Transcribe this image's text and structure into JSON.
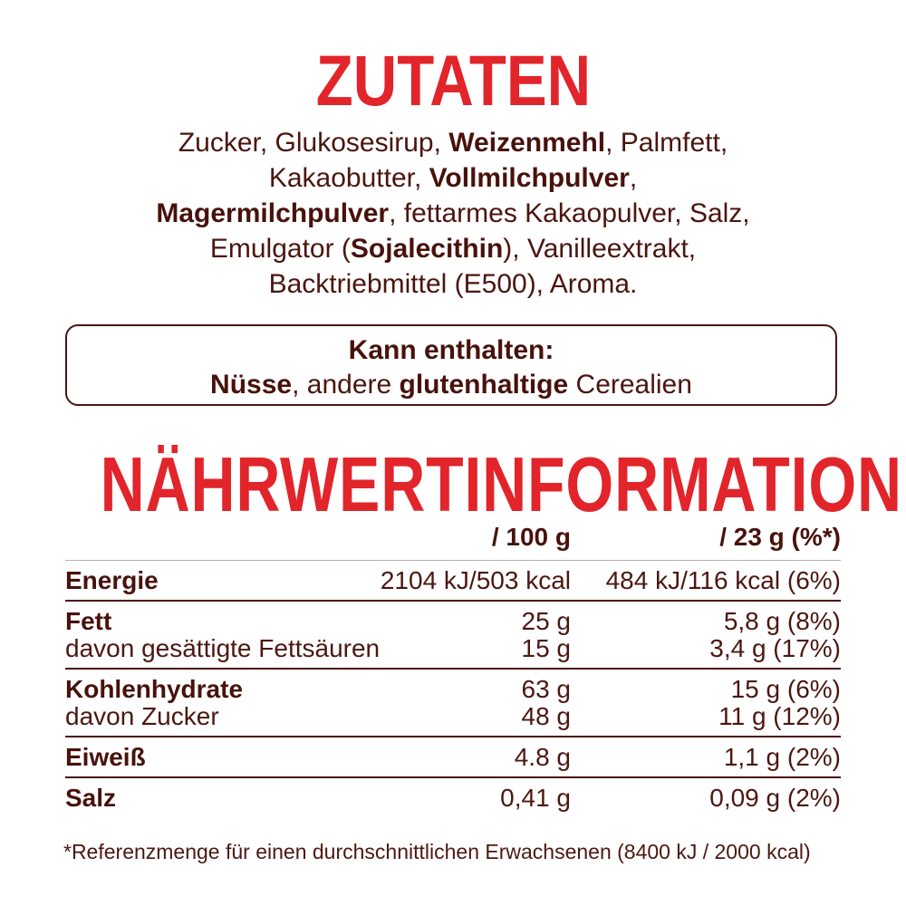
{
  "page": {
    "background_color": "#ffffff",
    "accent_red": "#e2242b",
    "text_maroon": "#4b150f"
  },
  "ingredients_section": {
    "title": "ZUTATEN",
    "lines": [
      [
        {
          "t": "Zucker, Glukosesirup, "
        },
        {
          "t": "Weizenmehl",
          "b": true
        },
        {
          "t": ", Palmfett,"
        }
      ],
      [
        {
          "t": "Kakaobutter, "
        },
        {
          "t": "Vollmilchpulver",
          "b": true
        },
        {
          "t": ","
        }
      ],
      [
        {
          "t": "Magermilchpulver",
          "b": true
        },
        {
          "t": ", fettarmes Kakaopulver, Salz,"
        }
      ],
      [
        {
          "t": "Emulgator ("
        },
        {
          "t": "Sojalecithin",
          "b": true
        },
        {
          "t": "), Vanilleextrakt,"
        }
      ],
      [
        {
          "t": "Backtriebmittel (E500), Aroma."
        }
      ]
    ]
  },
  "allergen_box": {
    "lines": [
      [
        {
          "t": "Kann enthalten:",
          "b": true
        }
      ],
      [
        {
          "t": "Nüsse",
          "b": true
        },
        {
          "t": ", andere "
        },
        {
          "t": "glutenhaltige",
          "b": true
        },
        {
          "t": " Cerealien"
        }
      ]
    ]
  },
  "nutrition_section": {
    "title": "NÄHRWERTINFORMATION",
    "col_headers": [
      "/ 100 g",
      "/ 23 g (%*)"
    ],
    "groups": [
      {
        "rows": [
          {
            "label": "Energie",
            "bold": true,
            "per100": "2104 kJ/503 kcal",
            "per23": "484 kJ/116 kcal (6%)"
          }
        ]
      },
      {
        "rows": [
          {
            "label": "Fett",
            "bold": true,
            "per100": "25 g",
            "per23": "5,8 g (8%)"
          },
          {
            "label": "davon gesättigte Fettsäuren",
            "bold": false,
            "per100": "15 g",
            "per23": "3,4 g (17%)"
          }
        ]
      },
      {
        "rows": [
          {
            "label": "Kohlenhydrate",
            "bold": true,
            "per100": "63 g",
            "per23": "15 g (6%)"
          },
          {
            "label": "davon Zucker",
            "bold": false,
            "per100": "48 g",
            "per23": "11 g (12%)"
          }
        ]
      },
      {
        "rows": [
          {
            "label": "Eiweiß",
            "bold": true,
            "per100": "4.8 g",
            "per23": "1,1 g (2%)"
          }
        ]
      },
      {
        "rows": [
          {
            "label": "Salz",
            "bold": true,
            "per100": "0,41 g",
            "per23": "0,09 g (2%)"
          }
        ]
      }
    ],
    "footnote": "*Referenzmenge für einen durchschnittlichen Erwachsenen (8400 kJ / 2000 kcal)"
  }
}
